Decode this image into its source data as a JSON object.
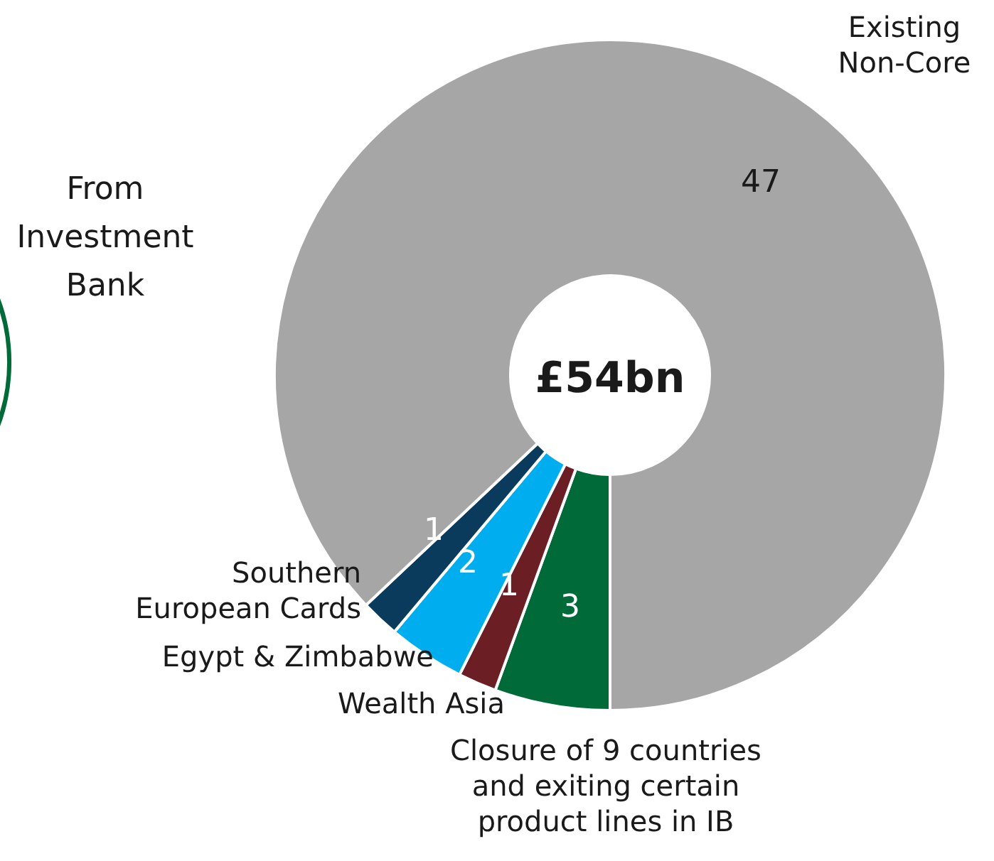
{
  "chart_data": {
    "type": "donut",
    "categories": [
      "Closure of 9 countries and exiting certain product lines in IB",
      "Wealth Asia",
      "Egypt & Zimbabwe",
      "Southern European Cards",
      "Existing Non-Core"
    ],
    "values": [
      3,
      1,
      2,
      1,
      47
    ],
    "colors": [
      "#006a38",
      "#6b1f24",
      "#00aeef",
      "#0a3a5c",
      "#a6a6a6"
    ],
    "data_labels": true,
    "annotations": [
      "£54bn",
      "From Investment Bank"
    ]
  }
}
